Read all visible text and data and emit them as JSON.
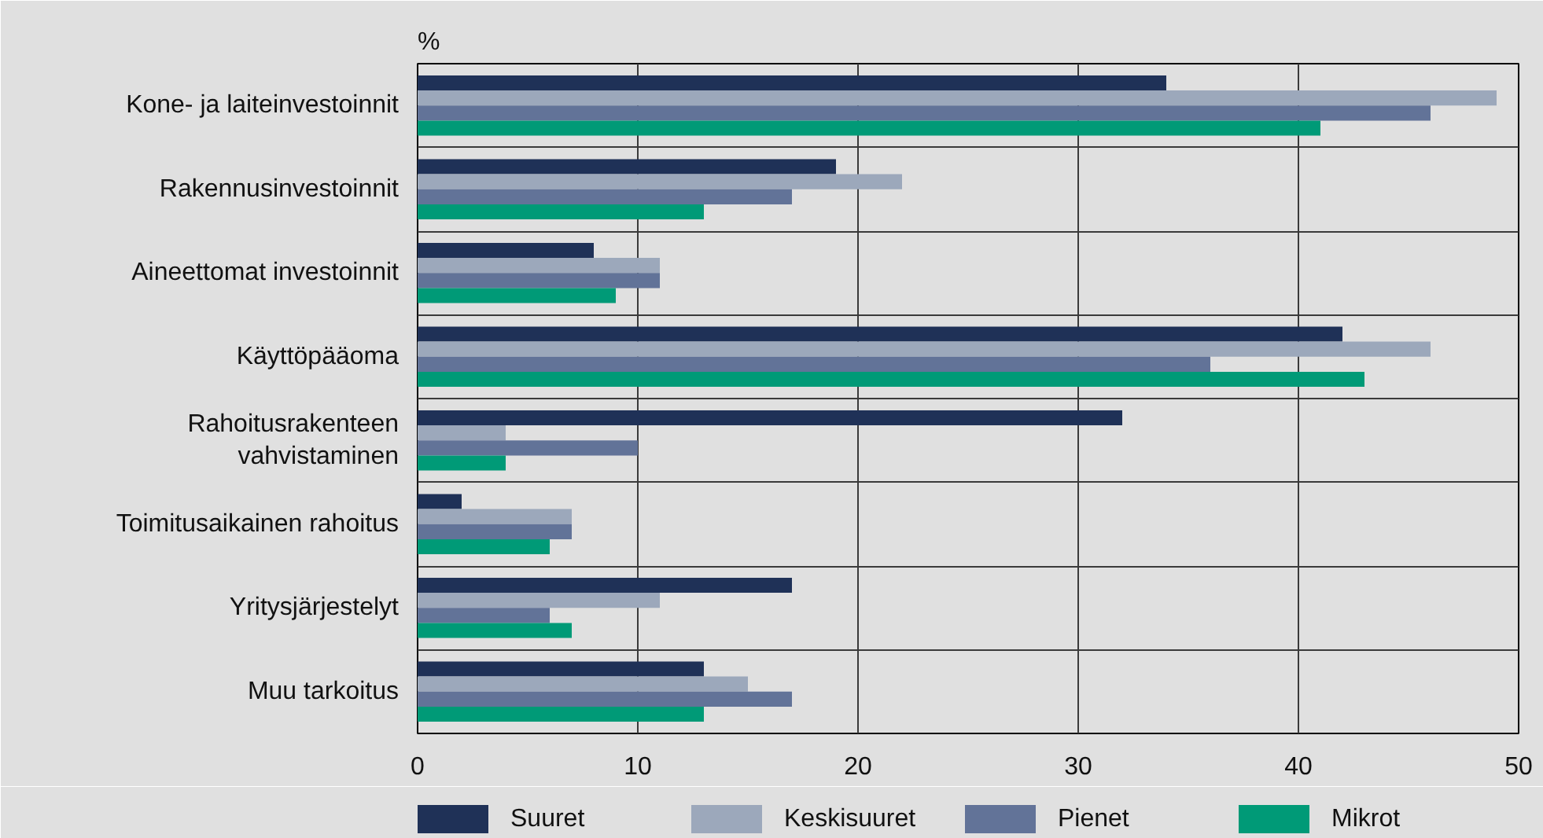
{
  "chart_data": {
    "type": "bar",
    "orientation": "horizontal",
    "xlabel": "%",
    "categories": [
      "Kone- ja laiteinvestoinnit",
      "Rakennusinvestoinnit",
      "Aineettomat investoinnit",
      "Käyttöpääoma",
      "Rahoitusrakenteen vahvistaminen",
      "Toimitusaikainen rahoitus",
      "Yritysjärjestelyt",
      "Muu tarkoitus"
    ],
    "series": [
      {
        "name": "Suuret",
        "color": "#1f3157",
        "values": [
          34,
          19,
          8,
          42,
          32,
          2,
          17,
          13
        ]
      },
      {
        "name": "Keskisuuret",
        "color": "#9ca8bb",
        "values": [
          49,
          22,
          11,
          46,
          4,
          7,
          11,
          15
        ]
      },
      {
        "name": "Pienet",
        "color": "#627398",
        "values": [
          46,
          17,
          11,
          36,
          10,
          7,
          6,
          17
        ]
      },
      {
        "name": "Mikrot",
        "color": "#009a77",
        "values": [
          41,
          13,
          9,
          43,
          4,
          6,
          7,
          13
        ]
      }
    ],
    "xlim": [
      0,
      50
    ],
    "xticks": [
      0,
      10,
      20,
      30,
      40,
      50
    ],
    "grid": true,
    "legend": "bottom"
  }
}
